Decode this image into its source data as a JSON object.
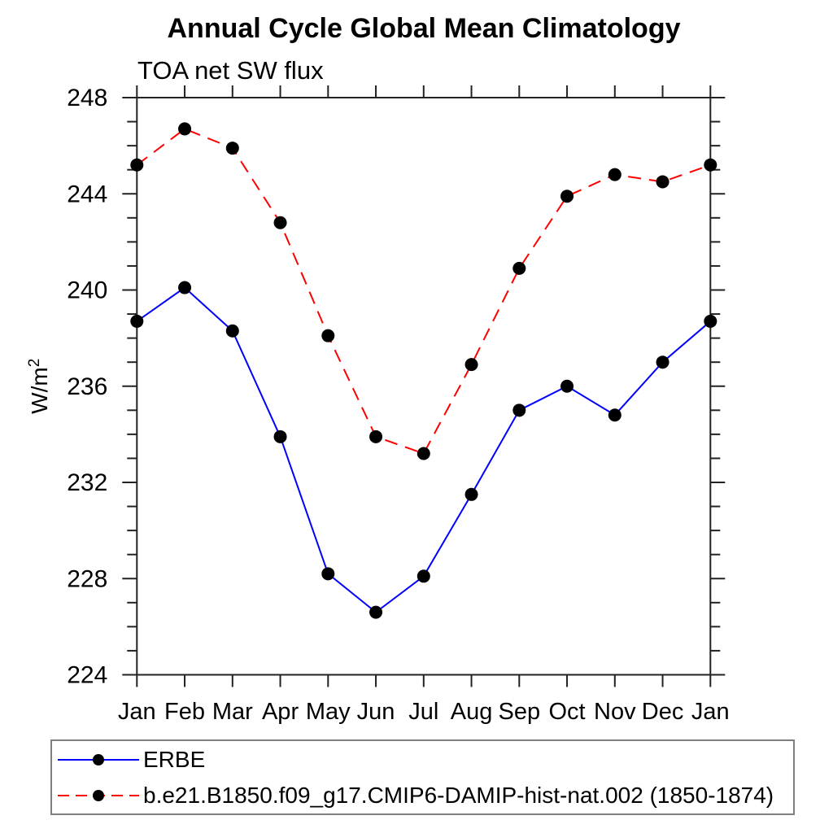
{
  "chart_data": {
    "type": "line",
    "title": "Annual Cycle Global Mean Climatology",
    "subtitle": "TOA net SW flux",
    "ylabel": "W/m²",
    "ylabel_main": "W/m",
    "ylabel_sup": "2",
    "xlabel": "",
    "x_categories": [
      "Jan",
      "Feb",
      "Mar",
      "Apr",
      "May",
      "Jun",
      "Jul",
      "Aug",
      "Sep",
      "Oct",
      "Nov",
      "Dec",
      "Jan"
    ],
    "ylim": [
      224,
      248
    ],
    "ytick_major": 4,
    "ytick_minor": 1,
    "grid": false,
    "legend_position": "bottom-left",
    "frame_color": "#222222",
    "marker_color": "#000000",
    "series": [
      {
        "name": "ERBE",
        "color": "#0000ff",
        "style": "solid",
        "marker": "circle",
        "values": [
          238.7,
          240.1,
          238.3,
          233.9,
          228.2,
          226.6,
          228.1,
          231.5,
          235.0,
          236.0,
          234.8,
          237.0,
          238.7
        ]
      },
      {
        "name": "b.e21.B1850.f09_g17.CMIP6-DAMIP-hist-nat.002 (1850-1874)",
        "color": "#ff0000",
        "style": "dashed",
        "marker": "circle",
        "values": [
          245.2,
          246.7,
          245.9,
          242.8,
          238.1,
          233.9,
          233.2,
          236.9,
          240.9,
          243.9,
          244.8,
          244.5,
          245.2
        ]
      }
    ]
  }
}
